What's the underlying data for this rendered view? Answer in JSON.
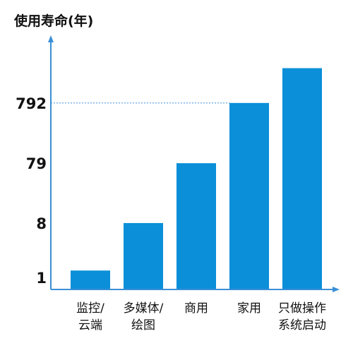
{
  "chart_data": {
    "type": "bar",
    "ylabel": "使用寿命(年)",
    "y_scale": "log",
    "yticks": [
      1,
      8,
      79,
      792
    ],
    "ylim": [
      0.63,
      8500
    ],
    "categories": [
      [
        "监控/",
        "云端"
      ],
      [
        "多媒体/",
        "绘图"
      ],
      [
        "商用"
      ],
      [
        "家用"
      ],
      [
        "只做操作",
        "系统启动"
      ]
    ],
    "values": [
      1.3,
      8,
      79,
      792,
      3000
    ],
    "reference_line": {
      "y": 792,
      "style": "dotted"
    },
    "colors": {
      "bar": "#0a8fd8",
      "axis": "#3b8fd6",
      "text": "#111111"
    },
    "grid": false,
    "legend": "none"
  }
}
